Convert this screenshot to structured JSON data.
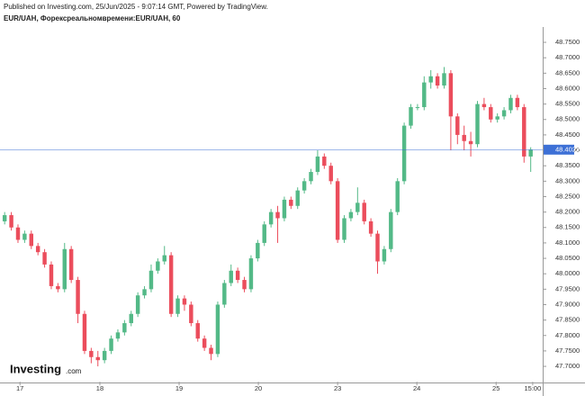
{
  "header": {
    "published": "Published on Investing.com, 25/Jun/2025 - 9:07:14 GMT, Powered by TradingView.",
    "symbol": "EUR/UAH, Форексреальномвремени:EUR/UAH, 60"
  },
  "logo": {
    "name": "Investing",
    "suffix": ".com"
  },
  "chart_data": {
    "type": "candlestick",
    "up_color": "#53b987",
    "down_color": "#eb4d5c",
    "open": [
      48.17,
      48.19,
      48.15,
      48.11,
      48.13,
      48.09,
      48.07,
      48.03,
      47.96,
      47.95,
      48.08,
      47.98,
      47.87,
      47.75,
      47.73,
      47.72,
      47.75,
      47.79,
      47.81,
      47.84,
      47.87,
      47.93,
      47.95,
      48.01,
      48.04,
      48.06,
      47.87,
      47.92,
      47.9,
      47.84,
      47.79,
      47.76,
      47.74,
      47.9,
      47.97,
      48.01,
      47.98,
      47.95,
      48.05,
      48.1,
      48.16,
      48.2,
      48.18,
      48.24,
      48.22,
      48.27,
      48.3,
      48.33,
      48.38,
      48.35,
      48.3,
      48.11,
      48.18,
      48.2,
      48.23,
      48.17,
      48.13,
      48.04,
      48.08,
      48.2,
      48.3,
      48.48,
      48.54,
      48.54,
      48.62,
      48.64,
      48.61,
      48.65,
      48.51,
      48.45,
      48.43,
      48.42,
      48.55,
      48.54,
      48.5,
      48.51,
      48.53,
      48.57,
      48.54,
      48.38
    ],
    "high": [
      48.2,
      48.2,
      48.16,
      48.14,
      48.14,
      48.1,
      48.08,
      48.04,
      47.97,
      48.1,
      48.09,
      47.99,
      47.88,
      47.76,
      47.75,
      47.76,
      47.8,
      47.82,
      47.85,
      47.88,
      47.94,
      47.96,
      48.03,
      48.05,
      48.09,
      48.07,
      47.93,
      47.93,
      47.91,
      47.85,
      47.8,
      47.77,
      47.91,
      47.98,
      48.03,
      48.02,
      47.99,
      48.06,
      48.11,
      48.17,
      48.21,
      48.22,
      48.25,
      48.25,
      48.28,
      48.31,
      48.34,
      48.4,
      48.39,
      48.36,
      48.31,
      48.19,
      48.21,
      48.28,
      48.24,
      48.18,
      48.14,
      48.09,
      48.21,
      48.31,
      48.49,
      48.55,
      48.55,
      48.64,
      48.66,
      48.65,
      48.67,
      48.66,
      48.52,
      48.48,
      48.46,
      48.56,
      48.57,
      48.55,
      48.52,
      48.54,
      48.58,
      48.58,
      48.55,
      48.41
    ],
    "low": [
      48.16,
      48.14,
      48.1,
      48.1,
      48.08,
      48.06,
      48.02,
      47.95,
      47.94,
      47.94,
      47.97,
      47.84,
      47.74,
      47.71,
      47.7,
      47.71,
      47.74,
      47.78,
      47.8,
      47.83,
      47.86,
      47.92,
      47.94,
      48.0,
      48.03,
      47.86,
      47.86,
      47.88,
      47.83,
      47.78,
      47.75,
      47.72,
      47.73,
      47.89,
      47.96,
      47.97,
      47.94,
      47.94,
      48.04,
      48.09,
      48.15,
      48.1,
      48.17,
      48.21,
      48.21,
      48.26,
      48.29,
      48.32,
      48.34,
      48.29,
      48.1,
      48.1,
      48.17,
      48.19,
      48.16,
      48.12,
      48.0,
      48.03,
      48.07,
      48.19,
      48.29,
      48.47,
      48.53,
      48.53,
      48.6,
      48.6,
      48.6,
      48.4,
      48.42,
      48.4,
      48.38,
      48.41,
      48.53,
      48.49,
      48.49,
      48.5,
      48.52,
      48.53,
      48.36,
      48.33
    ],
    "close": [
      48.19,
      48.15,
      48.11,
      48.13,
      48.09,
      48.07,
      48.03,
      47.96,
      47.95,
      48.08,
      47.98,
      47.87,
      47.75,
      47.73,
      47.72,
      47.75,
      47.79,
      47.81,
      47.84,
      47.87,
      47.93,
      47.95,
      48.01,
      48.04,
      48.06,
      47.87,
      47.92,
      47.9,
      47.84,
      47.79,
      47.76,
      47.74,
      47.9,
      47.97,
      48.01,
      47.98,
      47.95,
      48.05,
      48.1,
      48.16,
      48.2,
      48.18,
      48.24,
      48.22,
      48.27,
      48.3,
      48.33,
      48.38,
      48.35,
      48.3,
      48.11,
      48.18,
      48.2,
      48.23,
      48.17,
      48.13,
      48.04,
      48.08,
      48.2,
      48.3,
      48.48,
      48.54,
      48.54,
      48.62,
      48.64,
      48.61,
      48.65,
      48.51,
      48.45,
      48.43,
      48.42,
      48.55,
      48.54,
      48.5,
      48.51,
      48.53,
      48.57,
      48.54,
      48.38,
      48.4022
    ],
    "last_price": 48.4022,
    "last_price_color": "#3d70d6",
    "xlim": [
      -0.7,
      80.8
    ],
    "xticks": [
      {
        "value": 2.3,
        "label": "17"
      },
      {
        "value": 14.3,
        "label": "18"
      },
      {
        "value": 26.2,
        "label": "19"
      },
      {
        "value": 38.1,
        "label": "20"
      },
      {
        "value": 50,
        "label": "23"
      },
      {
        "value": 61.9,
        "label": "24"
      },
      {
        "value": 73.8,
        "label": "25"
      },
      {
        "value": 79.3,
        "label": "15:00"
      }
    ],
    "ylim": [
      47.65,
      48.8
    ],
    "yticks": [
      {
        "value": 47.7,
        "label": "47.7000"
      },
      {
        "value": 47.75,
        "label": "47.7500"
      },
      {
        "value": 47.8,
        "label": "47.8000"
      },
      {
        "value": 47.85,
        "label": "47.8500"
      },
      {
        "value": 47.9,
        "label": "47.9000"
      },
      {
        "value": 47.95,
        "label": "47.9500"
      },
      {
        "value": 48.0,
        "label": "48.0000"
      },
      {
        "value": 48.05,
        "label": "48.0500"
      },
      {
        "value": 48.1,
        "label": "48.1000"
      },
      {
        "value": 48.15,
        "label": "48.1500"
      },
      {
        "value": 48.2,
        "label": "48.2000"
      },
      {
        "value": 48.25,
        "label": "48.2500"
      },
      {
        "value": 48.3,
        "label": "48.3000"
      },
      {
        "value": 48.35,
        "label": "48.3500"
      },
      {
        "value": 48.4,
        "label": "48.4000"
      },
      {
        "value": 48.45,
        "label": "48.4500"
      },
      {
        "value": 48.5,
        "label": "48.5000"
      },
      {
        "value": 48.55,
        "label": "48.5500"
      },
      {
        "value": 48.6,
        "label": "48.6000"
      },
      {
        "value": 48.65,
        "label": "48.6500"
      },
      {
        "value": 48.7,
        "label": "48.7000"
      },
      {
        "value": 48.75,
        "label": "48.7500"
      }
    ]
  }
}
